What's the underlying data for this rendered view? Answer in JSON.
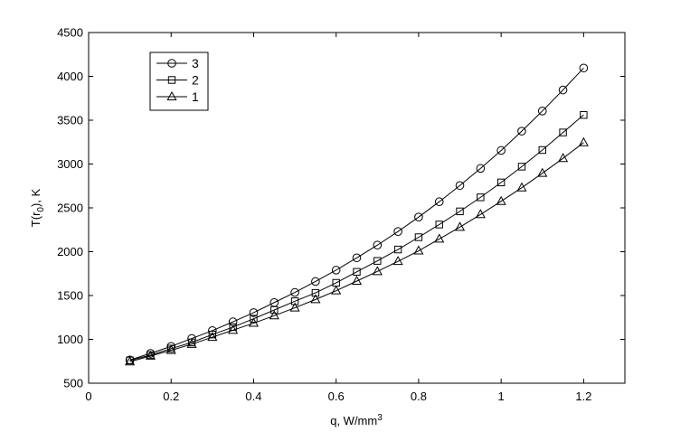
{
  "chart_data": {
    "type": "line",
    "xlabel": "q, W/mm",
    "xlabel_sup": "3",
    "ylabel_main": "T(r",
    "ylabel_sub": "0",
    "ylabel_rest": "), K",
    "xlim": [
      0,
      1.3
    ],
    "ylim": [
      500,
      4500
    ],
    "xticks": [
      0,
      0.2,
      0.4,
      0.6,
      0.8,
      1,
      1.2
    ],
    "xtick_labels": [
      "0",
      "0.2",
      "0.4",
      "0.6",
      "0.8",
      "1",
      "1.2"
    ],
    "yticks": [
      500,
      1000,
      1500,
      2000,
      2500,
      3000,
      3500,
      4000,
      4500
    ],
    "ytick_labels": [
      "500",
      "1000",
      "1500",
      "2000",
      "2500",
      "3000",
      "3500",
      "4000",
      "4500"
    ],
    "grid": false,
    "legend_position": "top-left",
    "x": [
      0.1,
      0.15,
      0.2,
      0.25,
      0.3,
      0.35,
      0.4,
      0.45,
      0.5,
      0.55,
      0.6,
      0.65,
      0.7,
      0.75,
      0.8,
      0.85,
      0.9,
      0.95,
      1.0,
      1.05,
      1.1,
      1.15,
      1.2
    ],
    "series": [
      {
        "name": "3",
        "marker": "circle",
        "values": [
          765,
          840,
          920,
          1010,
          1100,
          1200,
          1305,
          1420,
          1535,
          1660,
          1790,
          1930,
          2075,
          2230,
          2395,
          2570,
          2755,
          2950,
          3155,
          3375,
          3605,
          3845,
          4095
        ]
      },
      {
        "name": "2",
        "marker": "square",
        "values": [
          760,
          820,
          895,
          965,
          1055,
          1140,
          1235,
          1335,
          1435,
          1530,
          1645,
          1770,
          1895,
          2025,
          2165,
          2310,
          2460,
          2620,
          2790,
          2970,
          3160,
          3360,
          3560
        ]
      },
      {
        "name": "1",
        "marker": "triangle",
        "values": [
          745,
          810,
          875,
          945,
          1025,
          1105,
          1185,
          1270,
          1360,
          1455,
          1555,
          1665,
          1775,
          1890,
          2010,
          2145,
          2280,
          2425,
          2575,
          2730,
          2895,
          3065,
          3245
        ]
      }
    ]
  }
}
